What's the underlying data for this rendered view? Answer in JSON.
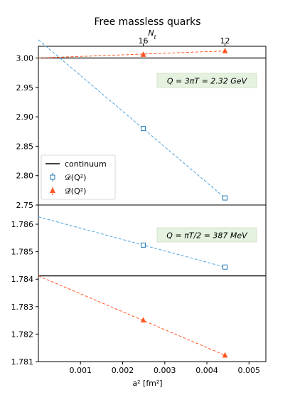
{
  "chart_data": {
    "type": "scatter",
    "title": "Free massless quarks",
    "top_axis": {
      "label": "N_t",
      "ticks": [
        {
          "label": "16",
          "x": 0.00249
        },
        {
          "label": "12",
          "x": 0.00443
        }
      ]
    },
    "xlabel": "a² [fm²]",
    "xlim": [
      0,
      0.0054
    ],
    "xticks": [
      0.001,
      0.002,
      0.003,
      0.004,
      0.005
    ],
    "xtick_labels": [
      "0.001",
      "0.002",
      "0.003",
      "0.004",
      "0.005"
    ],
    "legend": {
      "placement": "lower-left of top panel",
      "entries": [
        {
          "label": "continuum",
          "marker": "line",
          "color": "#000000"
        },
        {
          "label": "𝒟(Q²)",
          "marker": "open-square",
          "color": "#1f77b4"
        },
        {
          "label": "𝒟̂(Q²)",
          "marker": "filled-triangle",
          "color": "#ff5722"
        }
      ]
    },
    "panels": [
      {
        "annotation": "Q = 3πT = 2.32 GeV",
        "ylim": [
          2.75,
          3.02
        ],
        "yticks": [
          2.75,
          2.8,
          2.85,
          2.9,
          2.95,
          3.0
        ],
        "ytick_labels": [
          "2.75",
          "2.80",
          "2.85",
          "2.90",
          "2.95",
          "3.00"
        ],
        "continuum": 3.0,
        "series": [
          {
            "key": "D",
            "color": "#4aa3df",
            "marker": "open-square",
            "x": [
              0.00249,
              0.00443
            ],
            "y": [
              2.88,
              2.762
            ],
            "fit": {
              "x": [
                0.0,
                0.00443
              ],
              "y": [
                3.031,
                2.762
              ]
            }
          },
          {
            "key": "Dhat",
            "color": "#ff5722",
            "marker": "filled-triangle",
            "x": [
              0.00249,
              0.00443
            ],
            "y": [
              3.006,
              3.012
            ],
            "fit": {
              "x": [
                0.0,
                0.00443
              ],
              "y": [
                3.0,
                3.012
              ]
            }
          }
        ]
      },
      {
        "annotation": "Q = πT/2 = 387 MeV",
        "ylim": [
          1.781,
          1.7867
        ],
        "yticks": [
          1.781,
          1.782,
          1.783,
          1.784,
          1.785,
          1.786
        ],
        "ytick_labels": [
          "1.781",
          "1.782",
          "1.783",
          "1.784",
          "1.785",
          "1.786"
        ],
        "continuum": 1.78412,
        "series": [
          {
            "key": "D",
            "color": "#4aa3df",
            "marker": "open-square",
            "x": [
              0.00249,
              0.00443
            ],
            "y": [
              1.78524,
              1.78444
            ],
            "fit": {
              "x": [
                0.0,
                0.00443
              ],
              "y": [
                1.78627,
                1.78444
              ]
            }
          },
          {
            "key": "Dhat",
            "color": "#ff5722",
            "marker": "filled-triangle",
            "x": [
              0.00249,
              0.00443
            ],
            "y": [
              1.78251,
              1.78123
            ],
            "fit": {
              "x": [
                0.0,
                0.00443
              ],
              "y": [
                1.78412,
                1.78123
              ]
            }
          }
        ]
      }
    ]
  }
}
